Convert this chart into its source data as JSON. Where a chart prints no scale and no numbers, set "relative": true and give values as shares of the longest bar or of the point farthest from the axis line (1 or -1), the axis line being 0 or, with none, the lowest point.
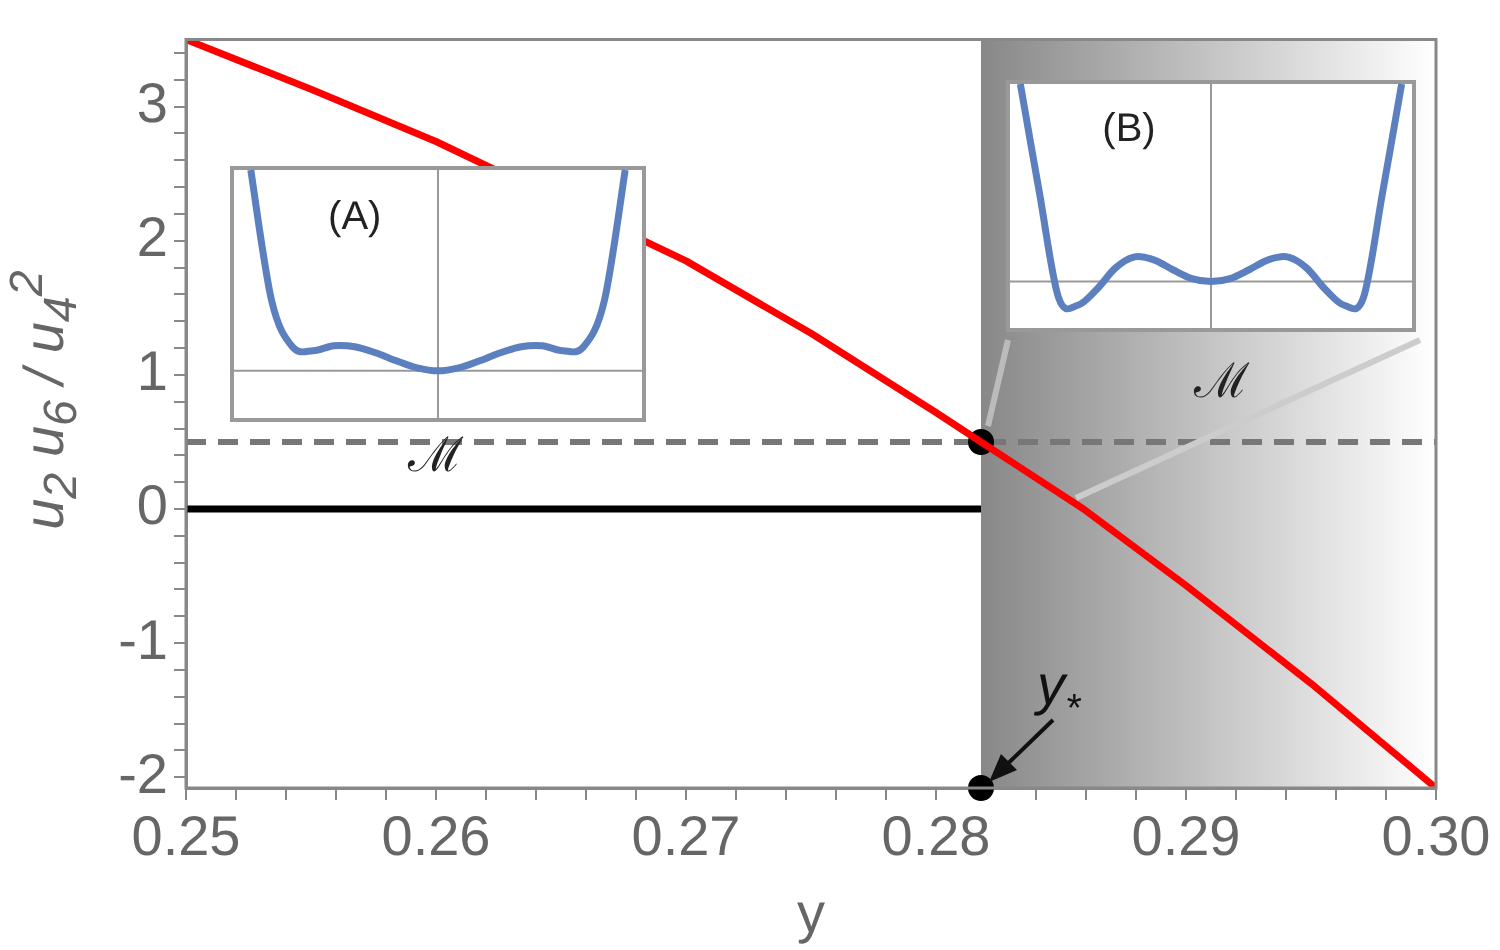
{
  "chart_data": [
    {
      "type": "line",
      "xlabel": "y",
      "ylabel": "u$_{2}$ u$_{6}$ / u$_{4}$$^{2}$",
      "xlim": [
        0.25,
        0.3
      ],
      "ylim": [
        -2.08,
        3.5
      ],
      "xticks": [
        0.25,
        {
          "value": 0.252,
          "label": null
        },
        {
          "value": 0.254,
          "label": null
        },
        {
          "value": 0.256,
          "label": null
        },
        {
          "value": 0.258,
          "label": null
        },
        0.26,
        {
          "value": 0.262,
          "label": null
        },
        {
          "value": 0.264,
          "label": null
        },
        {
          "value": 0.266,
          "label": null
        },
        {
          "value": 0.268,
          "label": null
        },
        0.27,
        {
          "value": 0.272,
          "label": null
        },
        {
          "value": 0.274,
          "label": null
        },
        {
          "value": 0.276,
          "label": null
        },
        {
          "value": 0.278,
          "label": null
        },
        0.28,
        {
          "value": 0.282,
          "label": null
        },
        {
          "value": 0.284,
          "label": null
        },
        {
          "value": 0.286,
          "label": null
        },
        {
          "value": 0.288,
          "label": null
        },
        0.29,
        {
          "value": 0.292,
          "label": null
        },
        {
          "value": 0.294,
          "label": null
        },
        {
          "value": 0.296,
          "label": null
        },
        {
          "value": 0.298,
          "label": null
        },
        {
          "value": 0.3,
          "label": "0.30"
        }
      ],
      "yticks": [
        -2,
        {
          "value": -1.8,
          "label": null
        },
        {
          "value": -1.6,
          "label": null
        },
        {
          "value": -1.4,
          "label": null
        },
        {
          "value": -1.2,
          "label": null
        },
        -1,
        {
          "value": -0.8,
          "label": null
        },
        {
          "value": -0.6,
          "label": null
        },
        {
          "value": -0.4,
          "label": null
        },
        {
          "value": -0.2,
          "label": null
        },
        0,
        {
          "value": 0.2,
          "label": null
        },
        {
          "value": 0.4,
          "label": null
        },
        {
          "value": 0.6,
          "label": null
        },
        {
          "value": 0.8,
          "label": null
        },
        1,
        {
          "value": 1.2,
          "label": null
        },
        {
          "value": 1.4,
          "label": null
        },
        {
          "value": 1.6,
          "label": null
        },
        {
          "value": 1.8,
          "label": null
        },
        2,
        {
          "value": 2.2,
          "label": null
        },
        {
          "value": 2.4,
          "label": null
        },
        {
          "value": 2.6,
          "label": null
        },
        {
          "value": 2.8,
          "label": null
        },
        3,
        {
          "value": 3.2,
          "label": null
        },
        {
          "value": 3.4,
          "label": null
        }
      ],
      "grid": false,
      "legend": false,
      "marker": "none",
      "series": [
        {
          "type": "line",
          "color": "#ff0000",
          "x": [
            0.25,
            0.255,
            0.26,
            0.265,
            0.27,
            0.275,
            0.28,
            0.2818,
            0.2859,
            0.29,
            0.295,
            0.3
          ],
          "values": [
            3.5,
            3.13,
            2.74,
            null,
            1.85,
            1.31,
            0.72,
            0.5,
            0,
            -0.57,
            -1.3,
            -2.08
          ]
        },
        {
          "type": "line",
          "color": "#000000",
          "x": [
            0.25,
            0.2818
          ],
          "values": [
            0,
            0
          ]
        },
        {
          "type": "scatter",
          "color": "#000000",
          "marker": "circle",
          "x": [
            0.2818,
            0.2818
          ],
          "values": [
            0.5,
            -2.08
          ]
        }
      ],
      "ref_lines": [
        {
          "axis": "y",
          "value": 0.5,
          "color": "#777777",
          "line_style": "dashed"
        }
      ],
      "bands": [
        {
          "axis": "x",
          "from": 0.2818,
          "to": 0.3,
          "color": "#888888"
        }
      ],
      "annotations": [
        {
          "text": "y$_{*}$",
          "x": 0.2818,
          "y": -2.08
        }
      ]
    },
    {
      "type": "line",
      "relative": true,
      "xlabel": "ℳ",
      "categories": [
        null,
        null,
        null,
        null,
        null,
        null,
        null,
        null,
        null,
        null,
        null,
        null,
        null,
        null,
        null,
        null,
        null,
        null,
        null
      ],
      "series": [
        {
          "color": "#5b7fbf",
          "values": [
            1,
            0.35,
            0.12,
            0.1,
            0.125,
            0.12,
            0.09,
            0.05,
            0.015,
            0,
            0.015,
            0.05,
            0.09,
            0.12,
            0.125,
            0.1,
            0.12,
            0.35,
            1
          ]
        }
      ],
      "annotations": [
        "(A)"
      ]
    },
    {
      "type": "line",
      "relative": true,
      "xlabel": "ℳ",
      "categories": [
        null,
        null,
        null,
        null,
        null,
        null,
        null,
        null,
        null,
        null,
        null,
        null,
        null,
        null,
        null,
        null,
        null,
        null,
        null,
        null,
        null
      ],
      "series": [
        {
          "color": "#5b7fbf",
          "values": [
            1,
            0.45,
            -0.08,
            -0.12,
            -0.04,
            0.07,
            0.125,
            0.11,
            0.06,
            0.015,
            0,
            0.015,
            0.06,
            0.11,
            0.125,
            0.07,
            -0.04,
            -0.12,
            -0.08,
            0.45,
            1
          ]
        }
      ],
      "annotations": [
        "(B)"
      ]
    }
  ]
}
